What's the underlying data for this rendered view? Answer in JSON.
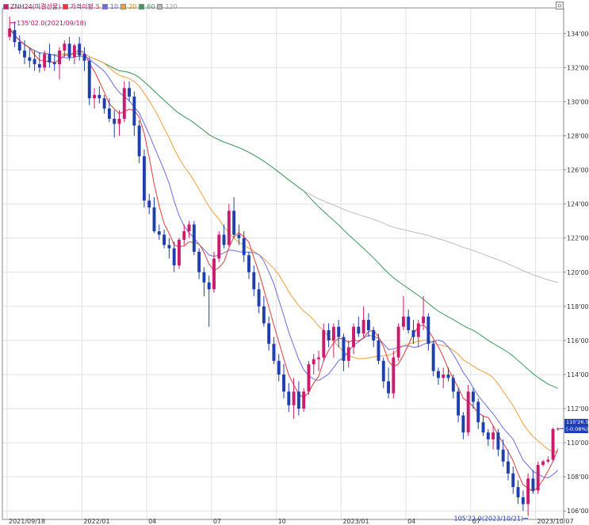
{
  "legend": {
    "instrument": "ZNH24(미결선물)",
    "moving_average_label": "가격이평",
    "periods": [
      "5",
      "10",
      "20",
      "60",
      "120"
    ]
  },
  "colors": {
    "up_candle": "#cc1a6e",
    "down_candle": "#1f3fae",
    "ma5": "#e03c3c",
    "ma10": "#6b6be6",
    "ma20": "#f0a040",
    "ma60": "#3c9a5a",
    "ma120": "#b8b8b8",
    "grid": "#e2e2e2",
    "axis": "#8a8a8a"
  },
  "annotations": {
    "high_label": "135'02.0(2021/09/18)",
    "low_label": "105'22.0(2023/10/21)"
  },
  "price_box": {
    "last": "110'26.5",
    "change": "(-0.08%)"
  },
  "chart_data": {
    "type": "candlestick",
    "price_unit": "32nds (e.g. 110'26.5 = 110 + 26.5/32)",
    "ylim": [
      105.5,
      135.5
    ],
    "y_ticks": [
      "106'00.0",
      "108'00.0",
      "110'00.0",
      "112'00.0",
      "114'00.0",
      "116'00.0",
      "118'00.0",
      "120'00.0",
      "122'00.0",
      "124'00.0",
      "126'00.0",
      "128'00.0",
      "130'00.0",
      "132'00.0",
      "134'00.0"
    ],
    "y_tick_values": [
      106,
      108,
      110,
      112,
      114,
      116,
      118,
      120,
      122,
      124,
      126,
      128,
      130,
      132,
      134
    ],
    "x_ticks": [
      {
        "index": 0,
        "label": "2021/09/18"
      },
      {
        "index": 15,
        "label": "2022/01"
      },
      {
        "index": 28,
        "label": "04"
      },
      {
        "index": 41,
        "label": "07"
      },
      {
        "index": 54,
        "label": "10"
      },
      {
        "index": 67,
        "label": "2023/01"
      },
      {
        "index": 80,
        "label": "04"
      },
      {
        "index": 93,
        "label": "07"
      },
      {
        "index": 106,
        "label": "2023/10/07"
      }
    ],
    "ohlc": [
      [
        133.8,
        135.0,
        133.6,
        134.3
      ],
      [
        134.2,
        134.7,
        133.2,
        133.5
      ],
      [
        133.5,
        133.9,
        132.8,
        133.0
      ],
      [
        133.0,
        133.6,
        132.2,
        132.6
      ],
      [
        132.6,
        133.2,
        132.0,
        132.4
      ],
      [
        132.5,
        133.0,
        131.8,
        132.2
      ],
      [
        132.2,
        132.9,
        131.7,
        132.0
      ],
      [
        132.0,
        133.0,
        131.8,
        132.8
      ],
      [
        132.8,
        133.4,
        132.0,
        132.3
      ],
      [
        132.3,
        132.8,
        131.8,
        132.2
      ],
      [
        132.2,
        133.2,
        131.3,
        133.0
      ],
      [
        133.0,
        133.6,
        132.6,
        133.4
      ],
      [
        133.4,
        133.8,
        132.4,
        132.6
      ],
      [
        132.6,
        133.4,
        132.2,
        133.3
      ],
      [
        133.4,
        133.8,
        132.4,
        132.7
      ],
      [
        132.8,
        133.2,
        131.8,
        132.4
      ],
      [
        132.4,
        132.6,
        129.8,
        130.2
      ],
      [
        130.2,
        130.8,
        129.6,
        130.4
      ],
      [
        130.4,
        130.9,
        129.9,
        130.2
      ],
      [
        130.2,
        130.4,
        129.3,
        129.6
      ],
      [
        129.6,
        130.2,
        128.8,
        129.0
      ],
      [
        129.0,
        129.5,
        127.9,
        128.7
      ],
      [
        128.7,
        129.5,
        128.0,
        129.0
      ],
      [
        129.0,
        131.2,
        128.8,
        130.8
      ],
      [
        130.8,
        131.2,
        130.0,
        130.3
      ],
      [
        130.3,
        130.6,
        128.0,
        128.6
      ],
      [
        128.6,
        128.9,
        126.4,
        126.8
      ],
      [
        126.8,
        127.2,
        123.8,
        124.2
      ],
      [
        124.2,
        124.6,
        123.4,
        123.8
      ],
      [
        123.8,
        124.4,
        122.3,
        122.4
      ],
      [
        122.4,
        122.8,
        121.9,
        122.2
      ],
      [
        122.2,
        122.5,
        121.4,
        121.6
      ],
      [
        121.6,
        122.0,
        120.8,
        121.4
      ],
      [
        121.4,
        121.8,
        120.0,
        120.4
      ],
      [
        120.4,
        122.0,
        120.2,
        121.9
      ],
      [
        121.9,
        122.8,
        121.6,
        122.4
      ],
      [
        122.4,
        123.0,
        122.0,
        122.8
      ],
      [
        122.8,
        123.0,
        121.0,
        121.2
      ],
      [
        121.2,
        121.4,
        119.6,
        120.0
      ],
      [
        120.0,
        120.3,
        118.6,
        119.4
      ],
      [
        119.4,
        119.8,
        116.8,
        119.0
      ],
      [
        119.0,
        121.2,
        118.8,
        120.8
      ],
      [
        120.8,
        122.4,
        120.6,
        122.2
      ],
      [
        122.2,
        122.8,
        121.4,
        121.6
      ],
      [
        121.6,
        124.0,
        121.5,
        123.6
      ],
      [
        123.6,
        124.4,
        122.0,
        122.2
      ],
      [
        122.2,
        122.8,
        121.6,
        122.0
      ],
      [
        122.0,
        122.4,
        120.6,
        121.0
      ],
      [
        121.0,
        121.2,
        119.6,
        120.0
      ],
      [
        120.0,
        120.4,
        118.6,
        119.0
      ],
      [
        119.0,
        119.4,
        117.6,
        118.0
      ],
      [
        118.0,
        118.6,
        116.8,
        117.0
      ],
      [
        117.0,
        117.4,
        115.4,
        115.8
      ],
      [
        115.8,
        116.2,
        114.6,
        114.8
      ],
      [
        114.8,
        115.2,
        113.6,
        114.0
      ],
      [
        114.0,
        114.6,
        112.6,
        113.0
      ],
      [
        113.0,
        113.5,
        111.8,
        112.2
      ],
      [
        112.2,
        113.8,
        111.4,
        113.0
      ],
      [
        113.0,
        113.6,
        111.6,
        112.0
      ],
      [
        112.0,
        113.2,
        111.8,
        113.0
      ],
      [
        113.0,
        114.8,
        112.8,
        114.6
      ],
      [
        114.6,
        115.2,
        114.0,
        114.9
      ],
      [
        114.9,
        115.4,
        114.2,
        115.0
      ],
      [
        115.0,
        117.0,
        114.8,
        116.6
      ],
      [
        116.6,
        117.0,
        115.6,
        116.0
      ],
      [
        116.0,
        117.0,
        115.0,
        116.8
      ],
      [
        116.8,
        117.2,
        115.6,
        116.2
      ],
      [
        116.2,
        116.4,
        114.2,
        114.8
      ],
      [
        114.8,
        116.0,
        114.4,
        115.6
      ],
      [
        115.6,
        117.0,
        115.2,
        116.8
      ],
      [
        116.8,
        117.4,
        116.2,
        116.4
      ],
      [
        116.4,
        118.0,
        116.2,
        117.2
      ],
      [
        117.2,
        117.6,
        116.2,
        116.6
      ],
      [
        116.6,
        116.8,
        115.6,
        116.0
      ],
      [
        116.0,
        116.4,
        114.6,
        114.8
      ],
      [
        114.8,
        115.0,
        113.2,
        113.6
      ],
      [
        113.6,
        114.4,
        112.6,
        112.9
      ],
      [
        112.9,
        115.4,
        112.6,
        115.0
      ],
      [
        115.0,
        117.0,
        114.8,
        116.8
      ],
      [
        116.8,
        118.6,
        116.6,
        117.4
      ],
      [
        117.4,
        117.8,
        116.4,
        116.6
      ],
      [
        116.6,
        117.2,
        115.8,
        116.2
      ],
      [
        116.2,
        117.2,
        115.6,
        117.0
      ],
      [
        117.0,
        118.6,
        116.6,
        117.4
      ],
      [
        117.4,
        117.6,
        115.4,
        115.8
      ],
      [
        115.8,
        116.0,
        113.9,
        114.2
      ],
      [
        114.2,
        114.4,
        113.4,
        113.8
      ],
      [
        113.8,
        114.4,
        113.2,
        114.0
      ],
      [
        114.0,
        114.4,
        113.6,
        113.8
      ],
      [
        113.8,
        114.0,
        112.6,
        113.0
      ],
      [
        113.0,
        113.2,
        111.2,
        111.6
      ],
      [
        111.6,
        111.8,
        110.2,
        110.6
      ],
      [
        110.6,
        113.4,
        110.4,
        113.0
      ],
      [
        113.0,
        113.2,
        112.0,
        112.4
      ],
      [
        112.4,
        112.6,
        110.8,
        111.2
      ],
      [
        111.2,
        111.6,
        110.4,
        110.6
      ],
      [
        110.6,
        110.8,
        109.8,
        110.2
      ],
      [
        110.2,
        111.0,
        109.6,
        110.6
      ],
      [
        110.6,
        110.8,
        109.2,
        109.6
      ],
      [
        109.6,
        110.2,
        108.6,
        108.9
      ],
      [
        108.9,
        109.6,
        107.8,
        108.2
      ],
      [
        108.2,
        108.6,
        107.0,
        107.4
      ],
      [
        107.4,
        107.8,
        106.4,
        106.8
      ],
      [
        106.8,
        107.2,
        106.0,
        106.4
      ],
      [
        106.4,
        108.2,
        105.7,
        107.9
      ],
      [
        107.9,
        108.4,
        107.0,
        107.2
      ],
      [
        107.2,
        108.9,
        107.0,
        108.7
      ],
      [
        108.7,
        109.0,
        108.6,
        108.9
      ],
      [
        108.9,
        109.2,
        108.8,
        109.0
      ],
      [
        109.0,
        110.9,
        108.9,
        110.8
      ],
      [
        110.8,
        110.9,
        110.7,
        110.83
      ]
    ]
  }
}
